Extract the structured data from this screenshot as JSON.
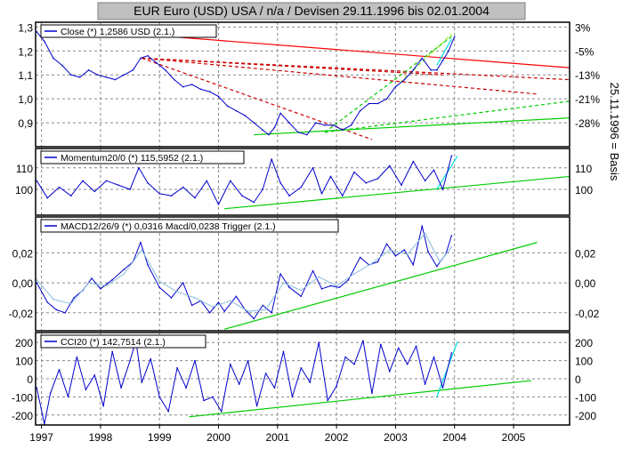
{
  "chart_data": [
    {
      "type": "line",
      "title": "EUR Euro (USD) USA / n/a / Devisen 29.11.1996 bis 02.01.2004",
      "legend": "Close (*) 1,2586 USD (2.1.)",
      "y_left_ticks": [
        "1,3",
        "1,2",
        "1,1",
        "1,0",
        "0,9"
      ],
      "y_left_values": [
        1.3,
        1.2,
        1.1,
        1.0,
        0.9
      ],
      "y_right_ticks": [
        "3%",
        "-5%",
        "-13%",
        "-21%",
        "-28%"
      ],
      "y_right_values": [
        1.3,
        1.2,
        1.1,
        1.0,
        0.9
      ],
      "y_right_label": "25.11.1996 = Basis",
      "ylim": [
        0.8,
        1.32
      ],
      "series": [
        {
          "name": "Close",
          "color": "#0000cc",
          "x": [
            1996.92,
            1997.05,
            1997.2,
            1997.35,
            1997.5,
            1997.65,
            1997.8,
            1997.95,
            1998.1,
            1998.25,
            1998.4,
            1998.55,
            1998.68,
            1998.8,
            1998.95,
            1999.1,
            1999.25,
            1999.4,
            1999.55,
            1999.7,
            1999.85,
            2000.0,
            2000.15,
            2000.3,
            2000.45,
            2000.6,
            2000.75,
            2000.85,
            2000.95,
            2001.05,
            2001.2,
            2001.35,
            2001.5,
            2001.65,
            2001.8,
            2001.95,
            2002.1,
            2002.25,
            2002.4,
            2002.55,
            2002.7,
            2002.85,
            2003.0,
            2003.15,
            2003.3,
            2003.45,
            2003.6,
            2003.7,
            2003.8,
            2003.9,
            2004.0
          ],
          "y": [
            1.28,
            1.24,
            1.17,
            1.14,
            1.1,
            1.09,
            1.12,
            1.1,
            1.09,
            1.08,
            1.1,
            1.12,
            1.17,
            1.18,
            1.15,
            1.12,
            1.08,
            1.05,
            1.06,
            1.04,
            1.03,
            1.01,
            0.97,
            0.95,
            0.93,
            0.9,
            0.87,
            0.85,
            0.88,
            0.94,
            0.9,
            0.86,
            0.85,
            0.9,
            0.89,
            0.89,
            0.87,
            0.89,
            0.95,
            0.98,
            0.98,
            1.0,
            1.05,
            1.08,
            1.12,
            1.17,
            1.12,
            1.12,
            1.16,
            1.2,
            1.26
          ]
        }
      ],
      "trendlines": [
        {
          "color": "#ff0000",
          "style": "solid",
          "x": [
            1997.1,
            2005.95
          ],
          "y": [
            1.3,
            1.13
          ]
        },
        {
          "color": "#cc0000",
          "style": "dashed",
          "x": [
            1998.7,
            2002.6
          ],
          "y": [
            1.17,
            0.83
          ]
        },
        {
          "color": "#cc0000",
          "style": "dashed",
          "x": [
            1998.7,
            2005.4
          ],
          "y": [
            1.17,
            1.02
          ]
        },
        {
          "color": "#cc0000",
          "style": "dashed",
          "x": [
            1998.7,
            2005.95
          ],
          "y": [
            1.17,
            1.08
          ]
        },
        {
          "color": "#cc0000",
          "style": "dashed",
          "x": [
            1998.7,
            2003.8
          ],
          "y": [
            1.17,
            1.1
          ]
        },
        {
          "color": "#00cc00",
          "style": "solid",
          "x": [
            2000.6,
            2005.95
          ],
          "y": [
            0.85,
            0.92
          ]
        },
        {
          "color": "#00cc00",
          "style": "dashed",
          "x": [
            2001.8,
            2005.95
          ],
          "y": [
            0.86,
            0.99
          ]
        },
        {
          "color": "#00cc00",
          "style": "dashed",
          "x": [
            2001.8,
            2003.95
          ],
          "y": [
            0.86,
            1.26
          ]
        },
        {
          "color": "#88ee00",
          "style": "dashed",
          "x": [
            2003.0,
            2003.95
          ],
          "y": [
            1.05,
            1.27
          ]
        },
        {
          "color": "#00dddd",
          "style": "solid",
          "x": [
            2003.7,
            2003.95
          ],
          "y": [
            1.14,
            1.25
          ]
        }
      ]
    },
    {
      "type": "line",
      "legend": "Momentum20/0 (*) 115,5952 (2.1.)",
      "y_left_ticks": [
        "110",
        "100"
      ],
      "y_left_values": [
        110,
        100
      ],
      "y_right_ticks": [
        "110",
        "100"
      ],
      "y_right_values": [
        110,
        100
      ],
      "ylim": [
        88,
        119
      ],
      "series": [
        {
          "name": "Momentum20/0",
          "color": "#0000cc",
          "x": [
            1996.92,
            1997.1,
            1997.3,
            1997.5,
            1997.7,
            1997.9,
            1998.1,
            1998.3,
            1998.5,
            1998.65,
            1998.8,
            1999.0,
            1999.2,
            1999.4,
            1999.6,
            1999.8,
            2000.0,
            2000.2,
            2000.4,
            2000.6,
            2000.75,
            2000.9,
            2001.05,
            2001.2,
            2001.4,
            2001.6,
            2001.75,
            2001.9,
            2002.1,
            2002.3,
            2002.5,
            2002.7,
            2002.9,
            2003.1,
            2003.3,
            2003.5,
            2003.65,
            2003.8,
            2003.95
          ],
          "y": [
            104,
            96,
            101,
            97,
            104,
            99,
            104,
            102,
            100,
            110,
            103,
            98,
            97,
            101,
            96,
            104,
            93,
            104,
            97,
            94,
            100,
            114,
            103,
            97,
            101,
            110,
            98,
            106,
            97,
            108,
            103,
            105,
            111,
            102,
            113,
            104,
            109,
            100,
            115.6
          ]
        }
      ],
      "trendlines": [
        {
          "color": "#00cc00",
          "style": "solid",
          "x": [
            2000.1,
            2005.95
          ],
          "y": [
            91,
            106
          ]
        },
        {
          "color": "#00dddd",
          "style": "solid",
          "x": [
            2003.7,
            2004.05
          ],
          "y": [
            100,
            115.5
          ]
        }
      ]
    },
    {
      "type": "line",
      "legend": "MACD12/26/9 (*) 0,0316 Macd/0,0238 Trigger (2.1.)",
      "y_left_ticks": [
        "0,02",
        "0,00",
        "-0,02"
      ],
      "y_left_values": [
        0.02,
        0.0,
        -0.02
      ],
      "y_right_ticks": [
        "0,02",
        "0,00",
        "-0,02"
      ],
      "y_right_values": [
        0.02,
        0.0,
        -0.02
      ],
      "ylim": [
        -0.032,
        0.044
      ],
      "series": [
        {
          "name": "Macd",
          "color": "#0000cc",
          "x": [
            1996.92,
            1997.1,
            1997.25,
            1997.4,
            1997.55,
            1997.7,
            1997.85,
            1998.0,
            1998.2,
            1998.4,
            1998.55,
            1998.68,
            1998.8,
            1999.0,
            1999.2,
            1999.4,
            1999.55,
            1999.7,
            1999.85,
            2000.0,
            2000.1,
            2000.3,
            2000.45,
            2000.6,
            2000.75,
            2000.9,
            2001.05,
            2001.2,
            2001.4,
            2001.6,
            2001.75,
            2001.9,
            2002.05,
            2002.2,
            2002.4,
            2002.55,
            2002.7,
            2002.85,
            2003.0,
            2003.15,
            2003.3,
            2003.45,
            2003.55,
            2003.7,
            2003.85,
            2003.95
          ],
          "y": [
            0.0,
            -0.013,
            -0.018,
            -0.02,
            -0.01,
            -0.005,
            0.003,
            -0.004,
            0.002,
            0.009,
            0.014,
            0.027,
            0.012,
            -0.003,
            -0.01,
            0.0,
            -0.015,
            -0.012,
            -0.02,
            -0.013,
            -0.019,
            -0.009,
            -0.018,
            -0.024,
            -0.015,
            -0.02,
            0.006,
            -0.003,
            -0.009,
            0.008,
            -0.004,
            -0.002,
            -0.003,
            0.002,
            0.017,
            0.012,
            0.014,
            0.026,
            0.018,
            0.022,
            0.012,
            0.038,
            0.021,
            0.011,
            0.019,
            0.0316
          ]
        },
        {
          "name": "Trigger",
          "color": "#88bbdd",
          "x": [
            1996.92,
            1997.2,
            1997.5,
            1997.8,
            1998.1,
            1998.4,
            1998.7,
            1999.0,
            1999.3,
            1999.6,
            1999.9,
            2000.2,
            2000.5,
            2000.8,
            2001.1,
            2001.4,
            2001.7,
            2002.0,
            2002.3,
            2002.6,
            2002.9,
            2003.2,
            2003.5,
            2003.75,
            2003.95
          ],
          "y": [
            0.002,
            -0.011,
            -0.014,
            0.0,
            -0.002,
            0.006,
            0.022,
            0.001,
            -0.006,
            -0.01,
            -0.016,
            -0.012,
            -0.019,
            -0.018,
            0.0,
            -0.005,
            0.004,
            -0.002,
            0.006,
            0.013,
            0.022,
            0.019,
            0.033,
            0.014,
            0.0238
          ]
        }
      ],
      "trendlines": [
        {
          "color": "#00cc00",
          "style": "solid",
          "x": [
            2000.1,
            2005.4
          ],
          "y": [
            -0.031,
            0.027
          ]
        }
      ]
    },
    {
      "type": "line",
      "legend": "CCI20 (*) 142,7514 (2.1.)",
      "y_left_ticks": [
        "200",
        "100",
        "0",
        "-100",
        "-200"
      ],
      "y_left_values": [
        200,
        100,
        0,
        -100,
        -200
      ],
      "y_right_ticks": [
        "200",
        "100",
        "0",
        "-100",
        "-200"
      ],
      "y_right_values": [
        200,
        100,
        0,
        -100,
        -200
      ],
      "ylim": [
        -255,
        255
      ],
      "series": [
        {
          "name": "CCI20",
          "color": "#0000cc",
          "x": [
            1996.92,
            1997.05,
            1997.15,
            1997.3,
            1997.45,
            1997.6,
            1997.75,
            1997.9,
            1998.05,
            1998.2,
            1998.35,
            1998.5,
            1998.6,
            1998.7,
            1998.85,
            1999.0,
            1999.15,
            1999.3,
            1999.45,
            1999.6,
            1999.75,
            1999.9,
            2000.05,
            2000.2,
            2000.35,
            2000.5,
            2000.65,
            2000.8,
            2000.95,
            2001.1,
            2001.25,
            2001.4,
            2001.55,
            2001.7,
            2001.85,
            2002.0,
            2002.15,
            2002.3,
            2002.45,
            2002.6,
            2002.75,
            2002.9,
            2003.05,
            2003.2,
            2003.35,
            2003.5,
            2003.65,
            2003.8,
            2003.95
          ],
          "y": [
            -50,
            -250,
            -80,
            50,
            -100,
            120,
            -60,
            20,
            -150,
            150,
            -50,
            100,
            210,
            -20,
            110,
            -100,
            -180,
            60,
            -50,
            100,
            -120,
            -100,
            -180,
            80,
            -30,
            100,
            -150,
            30,
            -50,
            150,
            -100,
            60,
            -20,
            200,
            -120,
            -40,
            120,
            80,
            210,
            -80,
            190,
            40,
            170,
            80,
            180,
            -30,
            120,
            -50,
            142.75
          ]
        }
      ],
      "trendlines": [
        {
          "color": "#00cc00",
          "style": "solid",
          "x": [
            1999.5,
            2005.3
          ],
          "y": [
            -210,
            -10
          ]
        },
        {
          "color": "#00dddd",
          "style": "solid",
          "x": [
            2003.7,
            2004.05
          ],
          "y": [
            -100,
            205
          ]
        }
      ]
    }
  ],
  "x_axis": {
    "ticks": [
      "1997",
      "1998",
      "1999",
      "2000",
      "2001",
      "2002",
      "2003",
      "2004",
      "2005"
    ],
    "values": [
      1997,
      1998,
      1999,
      2000,
      2001,
      2002,
      2003,
      2004,
      2005
    ],
    "xlim": [
      1996.9,
      2005.95
    ]
  },
  "colors": {
    "title_bg": "#c0c0c0",
    "grid": "#888888",
    "frame": "#000000"
  }
}
